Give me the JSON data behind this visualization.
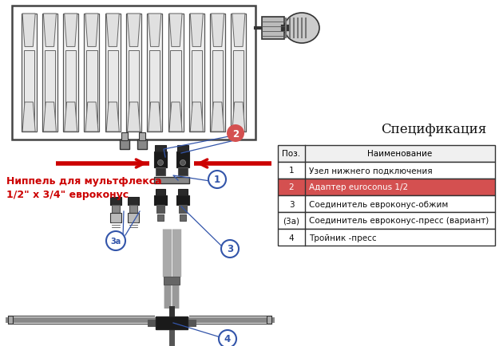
{
  "bg_color": "#ffffff",
  "spec_title": "Спецификация",
  "table_headers": [
    "Поз.",
    "Наименование"
  ],
  "table_rows": [
    [
      "1",
      "Узел нижнего подключения"
    ],
    [
      "2",
      "Адаптер euroconus 1/2"
    ],
    [
      "3",
      "Соединитель евроконус-обжим"
    ],
    [
      "(3а)",
      "Соединитель евроконус-пресс (вариант)"
    ],
    [
      "4",
      "Тройник -пресс"
    ]
  ],
  "highlighted_row": 1,
  "highlight_color": "#d45050",
  "label_text": "Ниппель для мультфлекса\n1/2\" x 3/4\" евроконус",
  "label_color": "#cc0000",
  "arrow_color": "#cc0000",
  "blue_color": "#3355aa",
  "dark": "#222222",
  "gray1": "#aaaaaa",
  "gray2": "#777777",
  "gray3": "#555555",
  "gray4": "#333333",
  "light_gray": "#dddddd",
  "white": "#ffffff",
  "rad_border": "#444444"
}
